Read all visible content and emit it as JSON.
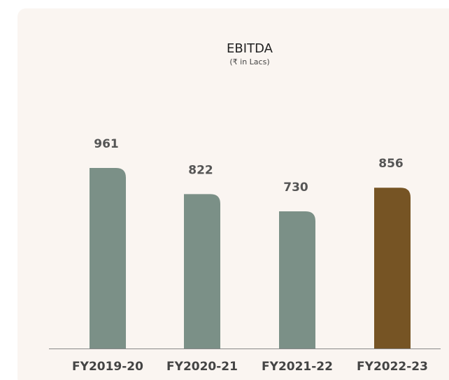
{
  "chart_data": {
    "type": "bar",
    "title": "EBITDA",
    "subtitle": "(₹ in Lacs)",
    "categories": [
      "FY2019-20",
      "FY2020-21",
      "FY2021-22",
      "FY2022-23"
    ],
    "values": [
      961,
      822,
      730,
      856
    ],
    "colors": [
      "#7b9087",
      "#7b9087",
      "#7b9087",
      "#765424"
    ]
  }
}
